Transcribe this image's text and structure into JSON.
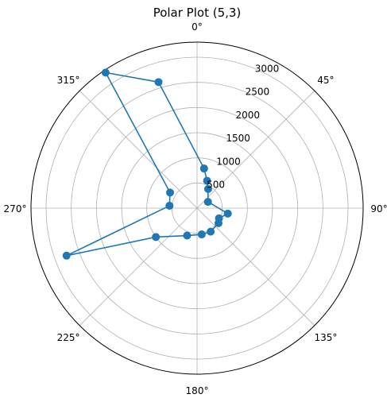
{
  "chart_data": {
    "type": "polar-line",
    "title": "Polar Plot (5,3)",
    "theta_direction": "clockwise",
    "theta_zero_location": "top",
    "angle_tick_labels": [
      "0°",
      "45°",
      "90°",
      "135°",
      "180°",
      "225°",
      "270°",
      "315°"
    ],
    "angle_tick_values_deg": [
      0,
      45,
      90,
      135,
      180,
      225,
      270,
      315
    ],
    "radial_tick_labels": [
      "500",
      "1000",
      "1500",
      "2000",
      "2500",
      "3000"
    ],
    "radial_tick_values": [
      500,
      1000,
      1500,
      2000,
      2500,
      3000
    ],
    "rlim": [
      0,
      3300
    ],
    "grid": true,
    "series": [
      {
        "color": "#1f77b4",
        "marker": "circle",
        "points": [
          {
            "theta_deg": 10,
            "r": 800
          },
          {
            "theta_deg": 20,
            "r": 580
          },
          {
            "theta_deg": 30,
            "r": 440
          },
          {
            "theta_deg": 60,
            "r": 250
          },
          {
            "theta_deg": 100,
            "r": 620
          },
          {
            "theta_deg": 115,
            "r": 480
          },
          {
            "theta_deg": 125,
            "r": 520
          },
          {
            "theta_deg": 150,
            "r": 540
          },
          {
            "theta_deg": 170,
            "r": 530
          },
          {
            "theta_deg": 200,
            "r": 580
          },
          {
            "theta_deg": 235,
            "r": 1000
          },
          {
            "theta_deg": 250,
            "r": 2760
          },
          {
            "theta_deg": 275,
            "r": 550
          },
          {
            "theta_deg": 300,
            "r": 620
          },
          {
            "theta_deg": 326,
            "r": 3250
          },
          {
            "theta_deg": 343,
            "r": 2620
          },
          {
            "theta_deg": 10,
            "r": 800
          }
        ]
      }
    ]
  }
}
